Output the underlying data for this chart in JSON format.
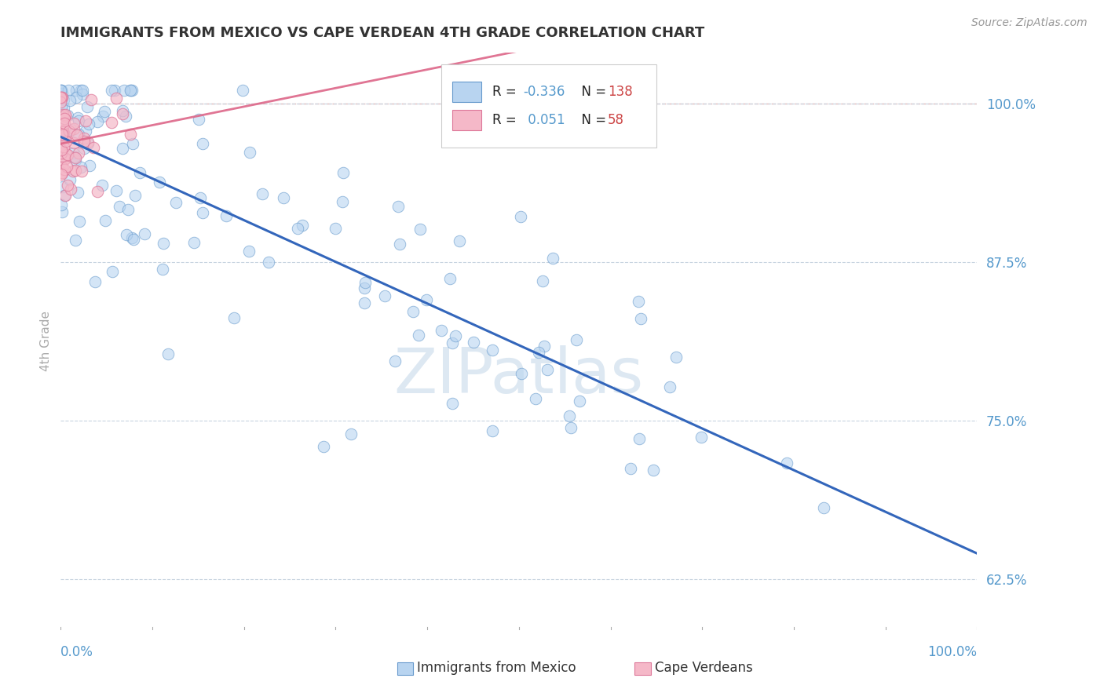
{
  "title": "IMMIGRANTS FROM MEXICO VS CAPE VERDEAN 4TH GRADE CORRELATION CHART",
  "source": "Source: ZipAtlas.com",
  "ylabel": "4th Grade",
  "yticks": [
    0.625,
    0.75,
    0.875,
    1.0
  ],
  "ytick_labels": [
    "62.5%",
    "75.0%",
    "87.5%",
    "100.0%"
  ],
  "xmin": 0.0,
  "xmax": 1.0,
  "ymin": 0.585,
  "ymax": 1.04,
  "blue_R": "-0.336",
  "blue_N": "138",
  "pink_R": "0.051",
  "pink_N": "58",
  "legend_label_blue": "Immigrants from Mexico",
  "legend_label_pink": "Cape Verdeans",
  "blue_face": "#b8d4f0",
  "blue_edge": "#6699cc",
  "pink_face": "#f5b8c8",
  "pink_edge": "#dd7799",
  "blue_line": "#3366bb",
  "pink_line": "#dd6688",
  "grid_color": "#c8d4e0",
  "dashed_pink_color": "#ddaaaa",
  "tick_color": "#5599cc",
  "ylabel_color": "#aaaaaa",
  "bg_color": "#ffffff",
  "watermark_text": "ZIPatlas",
  "watermark_color": "#dde8f2",
  "title_color": "#333333",
  "title_fontsize": 13,
  "source_color": "#999999",
  "source_fontsize": 10,
  "legend_R_color": "#5599cc",
  "legend_N_color": "#cc4444"
}
